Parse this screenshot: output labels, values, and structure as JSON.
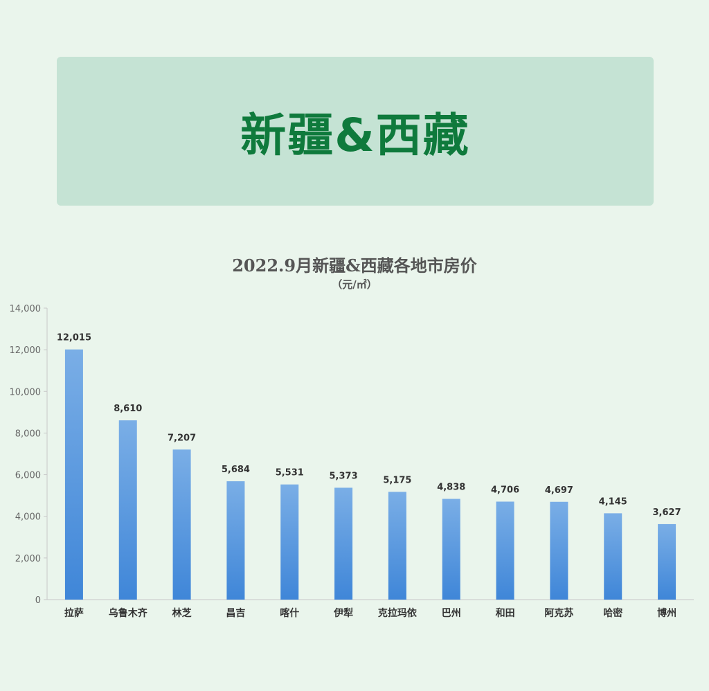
{
  "banner": {
    "title": "新疆&西藏"
  },
  "chart_data": {
    "type": "bar",
    "title": "2022.9月新疆&西藏各地市房价",
    "subtitle": "（元/㎡）",
    "categories": [
      "拉萨",
      "乌鲁木齐",
      "林芝",
      "昌吉",
      "喀什",
      "伊犁",
      "克拉玛依",
      "巴州",
      "和田",
      "阿克苏",
      "哈密",
      "博州"
    ],
    "values": [
      12015,
      8610,
      7207,
      5684,
      5531,
      5373,
      5175,
      4838,
      4706,
      4697,
      4145,
      3627
    ],
    "ylim": [
      0,
      14000
    ],
    "yticks": [
      0,
      2000,
      4000,
      6000,
      8000,
      10000,
      12000,
      14000
    ],
    "grid": false,
    "legend": "none",
    "bar_color_top": "#7aaee6",
    "bar_color_bottom": "#3f86d8"
  }
}
